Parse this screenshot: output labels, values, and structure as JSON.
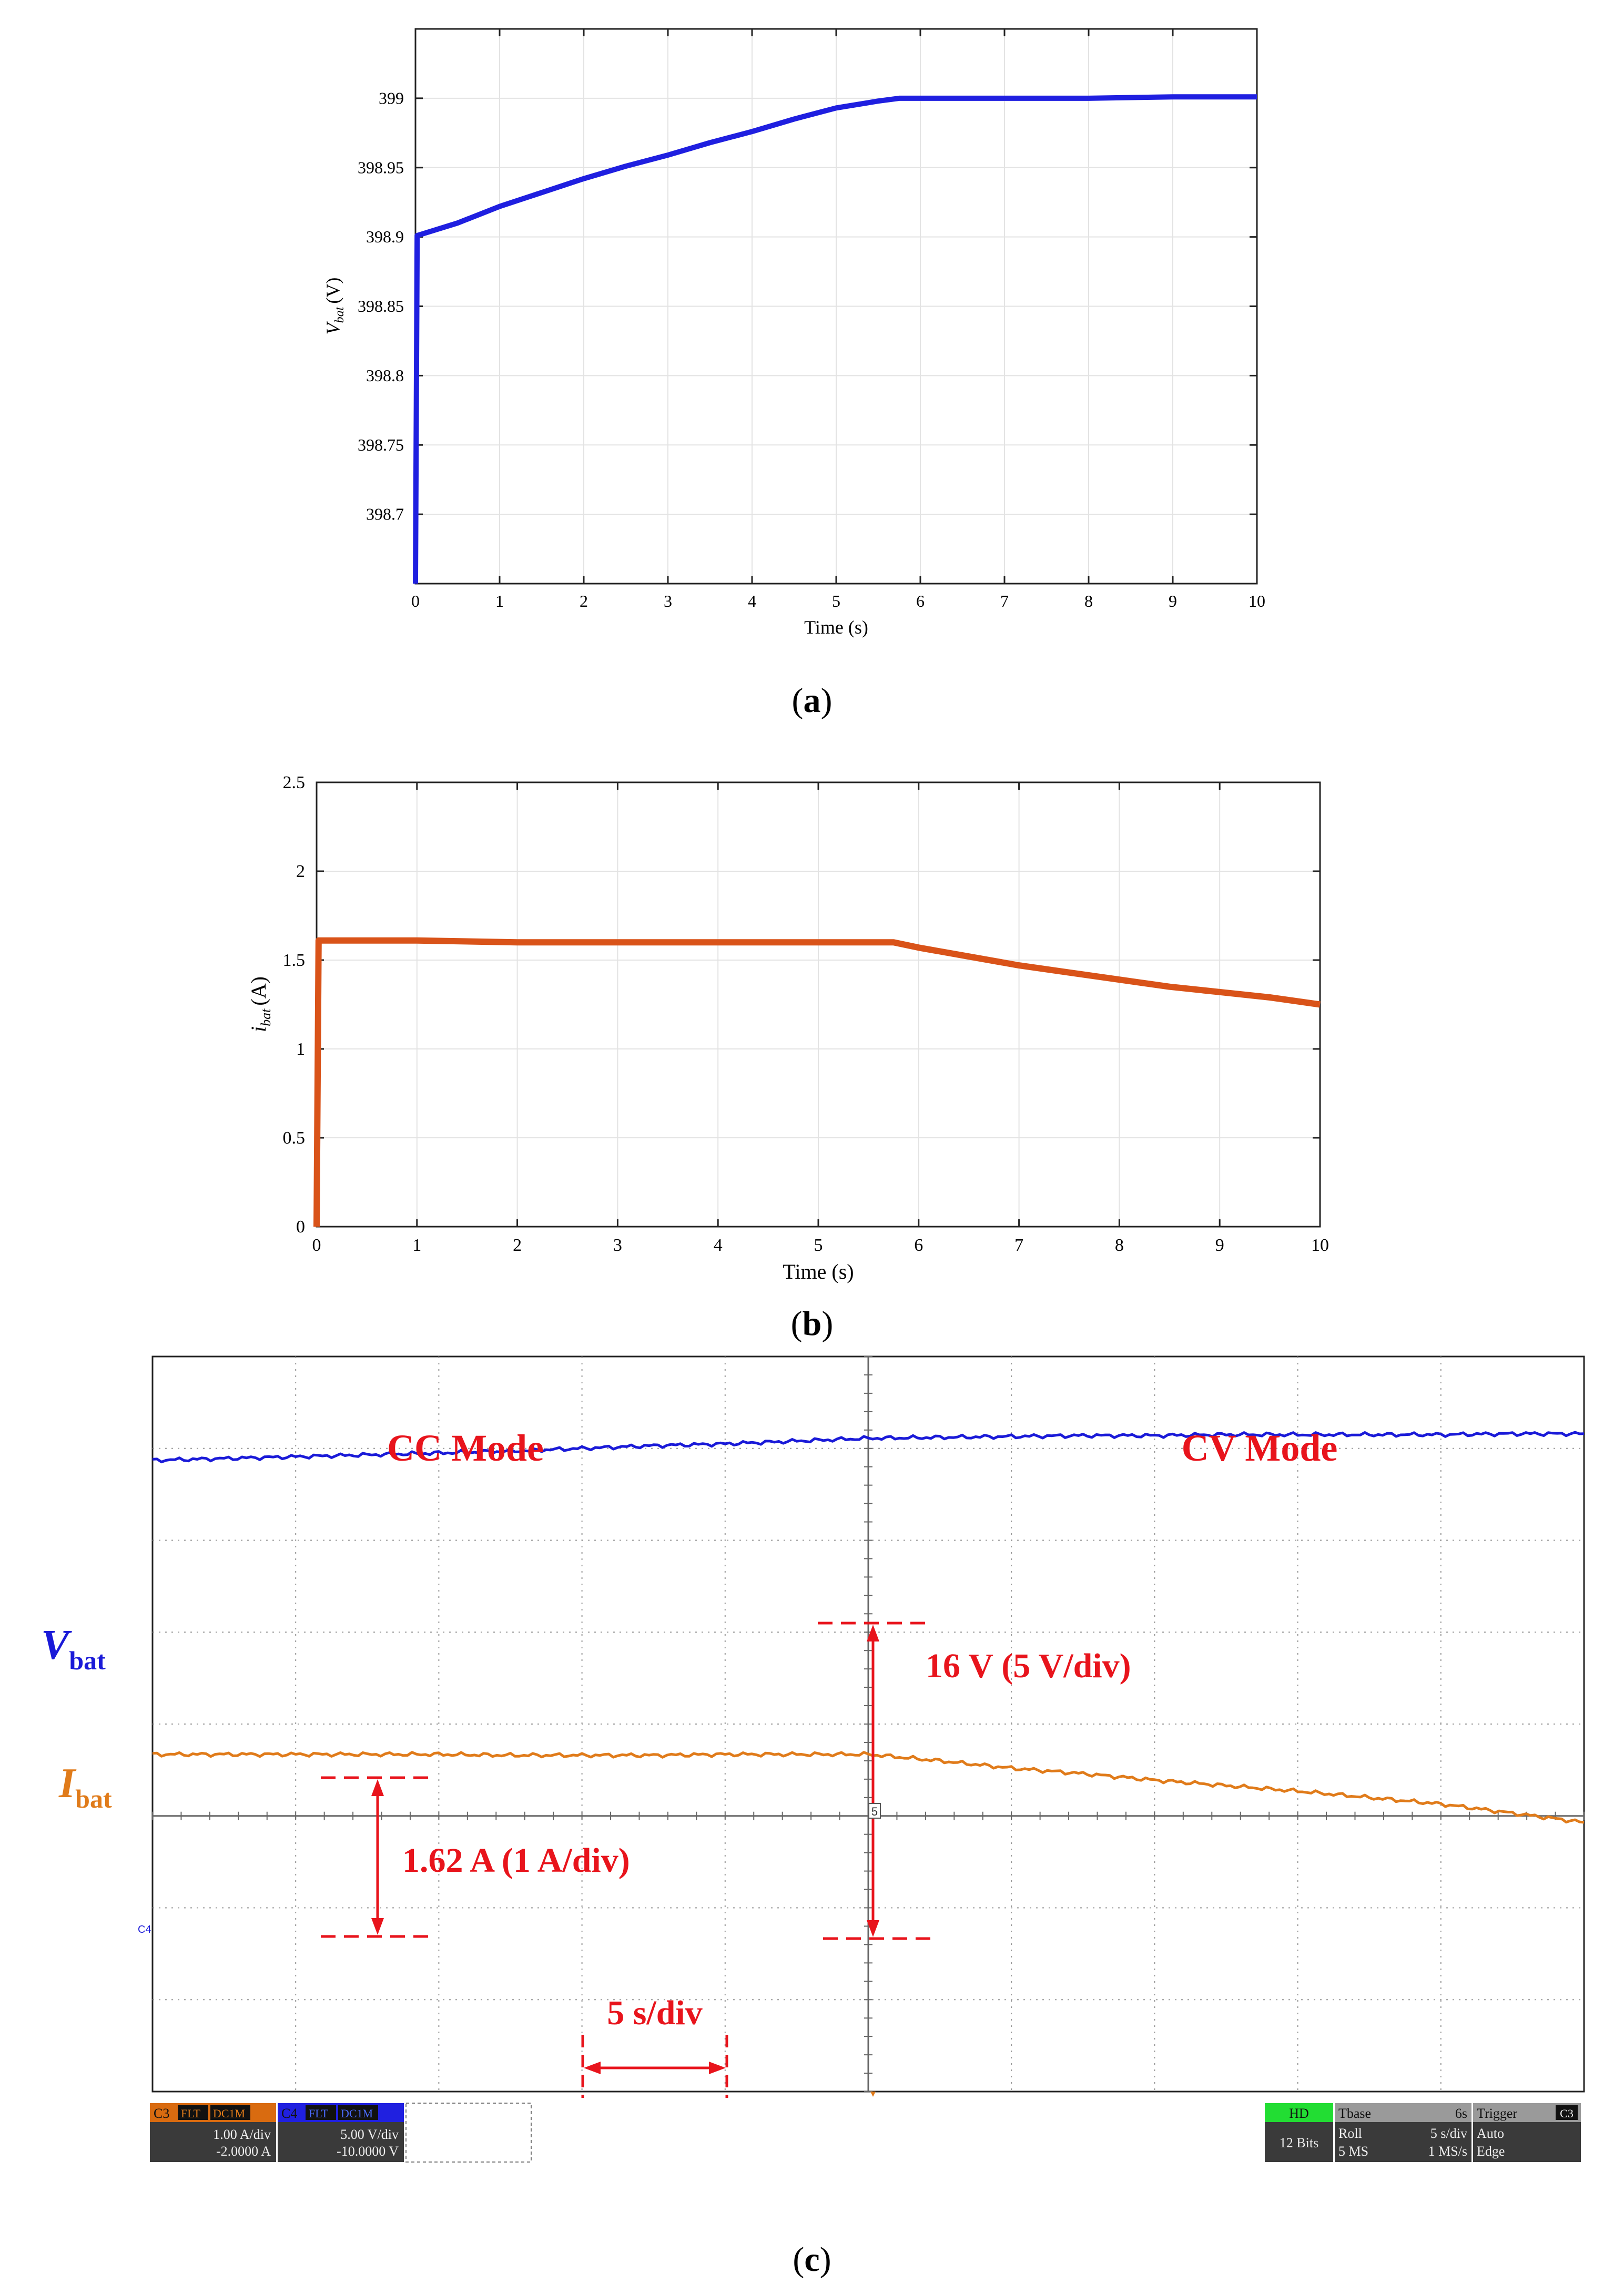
{
  "figures": {
    "a": {
      "caption_letter": "a",
      "chart_data": {
        "type": "line",
        "title": "",
        "xlabel": "Time (s)",
        "ylabel_main": "V",
        "ylabel_sub": "bat",
        "ylabel_unit": "(V)",
        "xlim": [
          0,
          10
        ],
        "ylim": [
          398.65,
          399.05
        ],
        "xticks": [
          0,
          1,
          2,
          3,
          4,
          5,
          6,
          7,
          8,
          9,
          10
        ],
        "yticks": [
          398.7,
          398.75,
          398.8,
          398.85,
          398.9,
          398.95,
          399
        ],
        "ytick_labels": [
          "398.7",
          "398.75",
          "398.8",
          "398.85",
          "398.9",
          "398.95",
          "399"
        ],
        "grid": true,
        "series": [
          {
            "name": "Vbat",
            "color": "#1f1fe0",
            "x": [
              0,
              0.02,
              0.5,
              1.0,
              1.5,
              2.0,
              2.5,
              3.0,
              3.5,
              4.0,
              4.5,
              5.0,
              5.5,
              5.75,
              6.0,
              7.0,
              8.0,
              9.0,
              10.0
            ],
            "y": [
              398.65,
              398.901,
              398.91,
              398.922,
              398.932,
              398.942,
              398.951,
              398.959,
              398.968,
              398.976,
              398.985,
              398.993,
              398.998,
              399.0,
              399.0,
              399.0,
              399.0,
              399.001,
              399.001
            ]
          }
        ]
      }
    },
    "b": {
      "caption_letter": "b",
      "chart_data": {
        "type": "line",
        "title": "",
        "xlabel": "Time (s)",
        "ylabel_main": "i",
        "ylabel_sub": "bat",
        "ylabel_unit": "(A)",
        "xlim": [
          0,
          10
        ],
        "ylim": [
          0,
          2.5
        ],
        "xticks": [
          0,
          1,
          2,
          3,
          4,
          5,
          6,
          7,
          8,
          9,
          10
        ],
        "yticks": [
          0,
          0.5,
          1,
          1.5,
          2,
          2.5
        ],
        "ytick_labels": [
          "0",
          "0.5",
          "1",
          "1.5",
          "2",
          "2.5"
        ],
        "grid": true,
        "series": [
          {
            "name": "ibat",
            "color": "#d95319",
            "x": [
              0,
              0.02,
              1.0,
              2.0,
              3.0,
              4.0,
              5.0,
              5.75,
              6.0,
              6.5,
              7.0,
              7.5,
              8.0,
              8.5,
              9.0,
              9.5,
              10.0
            ],
            "y": [
              0,
              1.61,
              1.61,
              1.6,
              1.6,
              1.6,
              1.6,
              1.6,
              1.57,
              1.52,
              1.47,
              1.43,
              1.39,
              1.35,
              1.32,
              1.29,
              1.25
            ]
          }
        ]
      }
    },
    "c": {
      "caption_letter": "c",
      "chart_data": {
        "type": "line",
        "title": "",
        "divisions_x": 10,
        "divisions_y": 8,
        "time_per_div": "5 s/div",
        "series": [
          {
            "name": "Vbat",
            "color": "#1a1ad8",
            "unit_per_div": "5 V/div",
            "offset_divs_from_top": 4.33,
            "x": [
              0,
              0.5,
              1,
              1.5,
              2,
              2.5,
              3,
              3.5,
              4,
              4.5,
              5,
              5.5,
              6,
              6.5,
              7,
              7.5,
              8,
              8.5,
              9,
              9.5,
              10
            ],
            "y_div": [
              3.2,
              3.22,
              3.24,
              3.26,
              3.28,
              3.3,
              3.33,
              3.36,
              3.38,
              3.41,
              3.44,
              3.45,
              3.46,
              3.47,
              3.47,
              3.48,
              3.48,
              3.48,
              3.48,
              3.49,
              3.49
            ]
          },
          {
            "name": "Ibat",
            "color": "#e07b1a",
            "unit_per_div": "1 A/div",
            "offset_divs_from_top": 5.95,
            "x": [
              0,
              0.5,
              1,
              1.5,
              2,
              2.5,
              3,
              3.5,
              4,
              4.5,
              5,
              5.5,
              6,
              6.5,
              7,
              7.5,
              8,
              8.5,
              9,
              9.5,
              10
            ],
            "y_div": [
              1.62,
              1.62,
              1.62,
              1.62,
              1.62,
              1.61,
              1.61,
              1.61,
              1.62,
              1.62,
              1.62,
              1.55,
              1.47,
              1.41,
              1.34,
              1.28,
              1.22,
              1.15,
              1.08,
              0.98,
              0.88
            ]
          }
        ],
        "annotations": {
          "cc_mode": "CC Mode",
          "cv_mode": "CV Mode",
          "vbat_label_main": "V",
          "vbat_label_sub": "bat",
          "ibat_label_main": "I",
          "ibat_label_sub": "bat",
          "voltage_step": "16 V (5 V/div)",
          "current_step": "1.62 A (1 A/div)",
          "time_div": "5 s/div",
          "marker_c4": "C4",
          "marker_5": "5"
        },
        "status_bar": {
          "ch3_name": "C3",
          "ch3_tag1": "FLT",
          "ch3_tag2": "DC1M",
          "ch3_scale": "1.00 A/div",
          "ch3_offset": "-2.0000 A",
          "ch4_name": "C4",
          "ch4_tag1": "FLT",
          "ch4_tag2": "DC1M",
          "ch4_scale": "5.00 V/div",
          "ch4_offset": "-10.0000 V",
          "hd": "HD",
          "bits": "12 Bits",
          "tbase_label": "Tbase",
          "tbase_value": "6s",
          "roll_label": "Roll",
          "roll_value": "5 s/div",
          "ms_label": "5 MS",
          "ms_value": "1 MS/s",
          "trigger_label": "Trigger",
          "trigger_ch": "C3",
          "trigger_mode": "Auto",
          "trigger_type": "Edge"
        },
        "colors": {
          "annotation": "#e8141c",
          "grid": "#a0a0a0",
          "status_bg": "#3a3a3a"
        }
      }
    }
  }
}
